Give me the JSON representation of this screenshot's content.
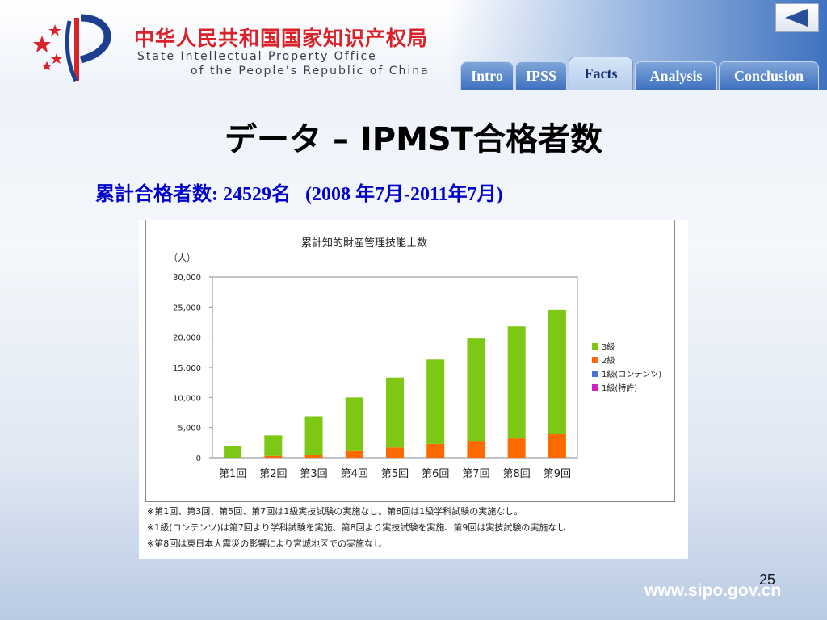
{
  "header": {
    "org_cn": "中华人民共和国国家知识产权局",
    "org_en_line1": "State Intellectual Property Office",
    "org_en_line2": "of the People's Republic of China"
  },
  "nav": {
    "tabs": [
      {
        "label": "Intro"
      },
      {
        "label": "IPSS"
      },
      {
        "label": "Facts"
      },
      {
        "label": "Analysis"
      },
      {
        "label": "Conclusion"
      }
    ],
    "active": "Facts"
  },
  "slide": {
    "title": "データ – IPMST合格者数",
    "subtitle": "累計合格者数: 24529名   (2008 年7月-2011年7月)",
    "page_number": "25",
    "footer_url": "www.sipo.gov.cn"
  },
  "chart_data": {
    "type": "bar",
    "stacked": true,
    "title": "累計知的財産管理技能士数",
    "ylabel": "（人）",
    "ylim": [
      0,
      30000
    ],
    "yticks": [
      "30,000",
      "25,000",
      "20,000",
      "15,000",
      "10,000",
      "5,000",
      "0"
    ],
    "categories": [
      "第1回",
      "第2回",
      "第3回",
      "第4回",
      "第5回",
      "第6回",
      "第7回",
      "第8回",
      "第9回"
    ],
    "series": [
      {
        "name": "3級",
        "color": "#7cc814",
        "values": [
          2000,
          3400,
          6400,
          8900,
          11600,
          14000,
          17000,
          18600,
          20600
        ]
      },
      {
        "name": "2級",
        "color": "#ff6a00",
        "values": [
          0,
          300,
          500,
          1100,
          1700,
          2300,
          2800,
          3200,
          3900
        ]
      },
      {
        "name": "1級(コンテンツ)",
        "color": "#4f6fd8",
        "values": [
          0,
          0,
          0,
          0,
          0,
          0,
          0,
          0,
          10
        ]
      },
      {
        "name": "1級(特許)",
        "color": "#d020c8",
        "values": [
          0,
          0,
          0,
          0,
          0,
          0,
          0,
          0,
          19
        ]
      }
    ],
    "legend_position": "right",
    "grid": false,
    "notes": [
      "※第1回、第3回、第5回、第7回は1級実技試験の実施なし。第8回は1級学科試験の実施なし。",
      "※1級(コンテンツ)は第7回より学科試験を実施、第8回より実技試験を実施、第9回は実技試験の実施なし",
      "※第8回は東日本大震災の影響により宮城地区での実施なし"
    ]
  }
}
